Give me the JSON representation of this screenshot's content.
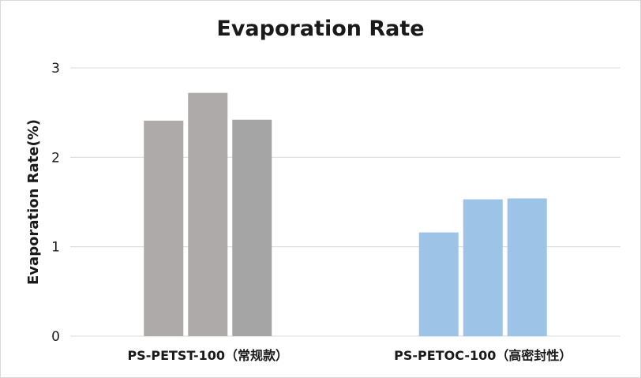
{
  "chart_data": {
    "type": "bar",
    "title": "Evaporation Rate",
    "xlabel": "",
    "ylabel": "Evaporation Rate(%)",
    "ylim": [
      0,
      3
    ],
    "yticks": [
      "0",
      "1",
      "2",
      "3"
    ],
    "grid": true,
    "legend": "none",
    "groups": [
      {
        "label": "PS-PETST-100（常规款）",
        "values": [
          2.41,
          2.72,
          2.42
        ],
        "colors": [
          "#aeaaaa",
          "#aeaaaa",
          "#a5a5a5"
        ]
      },
      {
        "label": "PS-PETOC-100（高密封性）",
        "values": [
          1.16,
          1.53,
          1.54
        ],
        "colors": [
          "#9dc3e6",
          "#9dc3e6",
          "#9dc3e6"
        ]
      }
    ]
  }
}
